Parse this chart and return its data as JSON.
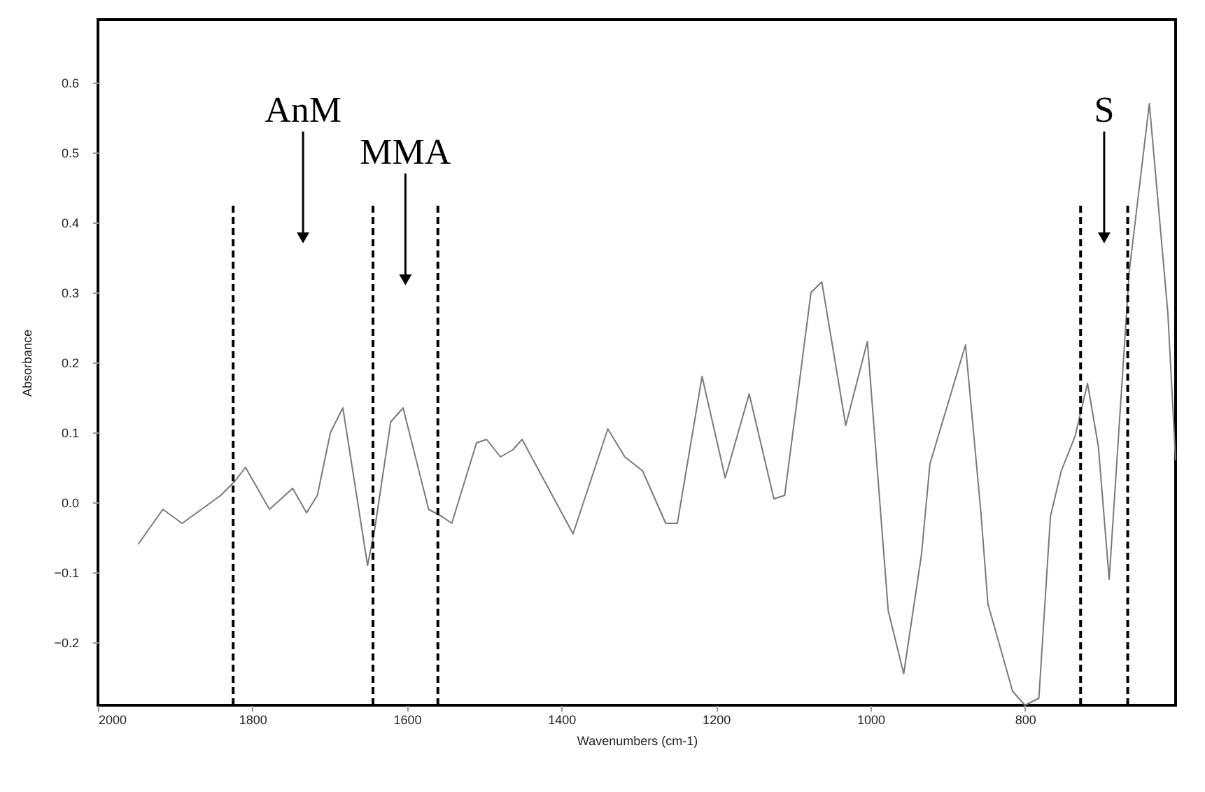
{
  "chart_data": {
    "type": "line",
    "xlabel": "Wavenumbers (cm-1)",
    "ylabel": "Absorbance",
    "x": [
      1948,
      1916,
      1891,
      1841,
      1823,
      1809,
      1778,
      1748,
      1730,
      1716,
      1699,
      1683,
      1651,
      1642,
      1621,
      1605,
      1572,
      1555,
      1542,
      1510,
      1497,
      1479,
      1463,
      1451,
      1385,
      1340,
      1318,
      1295,
      1265,
      1250,
      1218,
      1188,
      1157,
      1125,
      1111,
      1077,
      1063,
      1032,
      1004,
      977,
      957,
      934,
      923,
      877,
      857,
      848,
      816,
      800,
      782,
      767,
      753,
      735,
      719,
      705,
      691,
      665,
      639,
      615,
      605
    ],
    "series": [
      {
        "color": "#7a7a7a",
        "values": [
          -0.06,
          -0.01,
          -0.03,
          0.01,
          0.03,
          0.05,
          -0.01,
          0.02,
          -0.015,
          0.01,
          0.1,
          0.135,
          -0.09,
          -0.04,
          0.115,
          0.135,
          -0.01,
          -0.02,
          -0.03,
          0.085,
          0.09,
          0.065,
          0.075,
          0.09,
          -0.045,
          0.105,
          0.065,
          0.045,
          -0.03,
          -0.03,
          0.18,
          0.035,
          0.155,
          0.005,
          0.01,
          0.3,
          0.315,
          0.11,
          0.23,
          -0.155,
          -0.245,
          -0.075,
          0.055,
          0.225,
          -0.015,
          -0.145,
          -0.27,
          -0.29,
          -0.28,
          -0.02,
          0.045,
          0.095,
          0.17,
          0.08,
          -0.11,
          0.33,
          0.57,
          0.27,
          0.06
        ]
      }
    ],
    "xlim": [
      2000,
      605
    ],
    "ylim": [
      -0.29,
      0.69
    ],
    "xticks": [
      2000,
      1800,
      1600,
      1400,
      1200,
      1000,
      800
    ],
    "yticks": [
      -0.2,
      -0.1,
      {
        "value": 0,
        "label": "0.0"
      },
      0.1,
      0.2,
      0.3,
      0.4,
      0.5,
      0.6
    ],
    "grid": false,
    "marker": "none",
    "line_style": "solid",
    "ref_lines": [
      {
        "axis": "x",
        "value": 1825,
        "color": "#000000",
        "line_style": "dashed"
      },
      {
        "axis": "x",
        "value": 1644,
        "color": "#000000",
        "line_style": "dashed"
      },
      {
        "axis": "x",
        "value": 1560,
        "color": "#000000",
        "line_style": "dashed"
      },
      {
        "axis": "x",
        "value": 728,
        "color": "#000000",
        "line_style": "dashed"
      },
      {
        "axis": "x",
        "value": 667,
        "color": "#000000",
        "line_style": "dashed"
      }
    ],
    "annotations": [
      "AnM",
      "MMA",
      "S"
    ]
  }
}
